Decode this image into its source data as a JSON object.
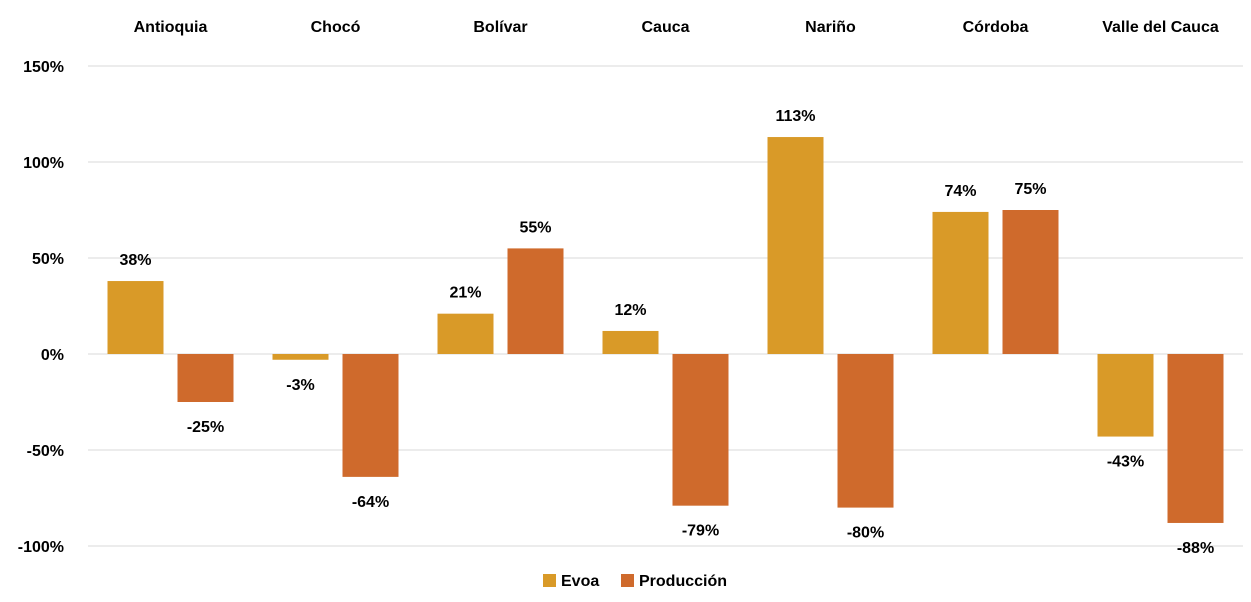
{
  "chart_data": {
    "type": "bar",
    "categories": [
      "Antioquia",
      "Chocó",
      "Bolívar",
      "Cauca",
      "Nariño",
      "Córdoba",
      "Valle del Cauca"
    ],
    "series": [
      {
        "name": "Evoa",
        "values": [
          38,
          -3,
          21,
          12,
          113,
          74,
          -43
        ],
        "labels": [
          "38%",
          "-3%",
          "21%",
          "12%",
          "113%",
          "74%",
          "-43%"
        ],
        "color": "#D99A28"
      },
      {
        "name": "Producción",
        "values": [
          -25,
          -64,
          55,
          -79,
          -80,
          75,
          -88
        ],
        "labels": [
          "-25%",
          "-64%",
          "55%",
          "-79%",
          "-80%",
          "75%",
          "-88%"
        ],
        "color": "#CF6A2C"
      }
    ],
    "yticks": [
      150,
      100,
      50,
      0,
      -50,
      -100
    ],
    "ytick_labels": [
      "150%",
      "100%",
      "50%",
      "0%",
      "-50%",
      "-100%"
    ],
    "ylim": [
      -100,
      150
    ],
    "category_axis_position": "top",
    "grid": true,
    "legend_position": "bottom-center"
  }
}
